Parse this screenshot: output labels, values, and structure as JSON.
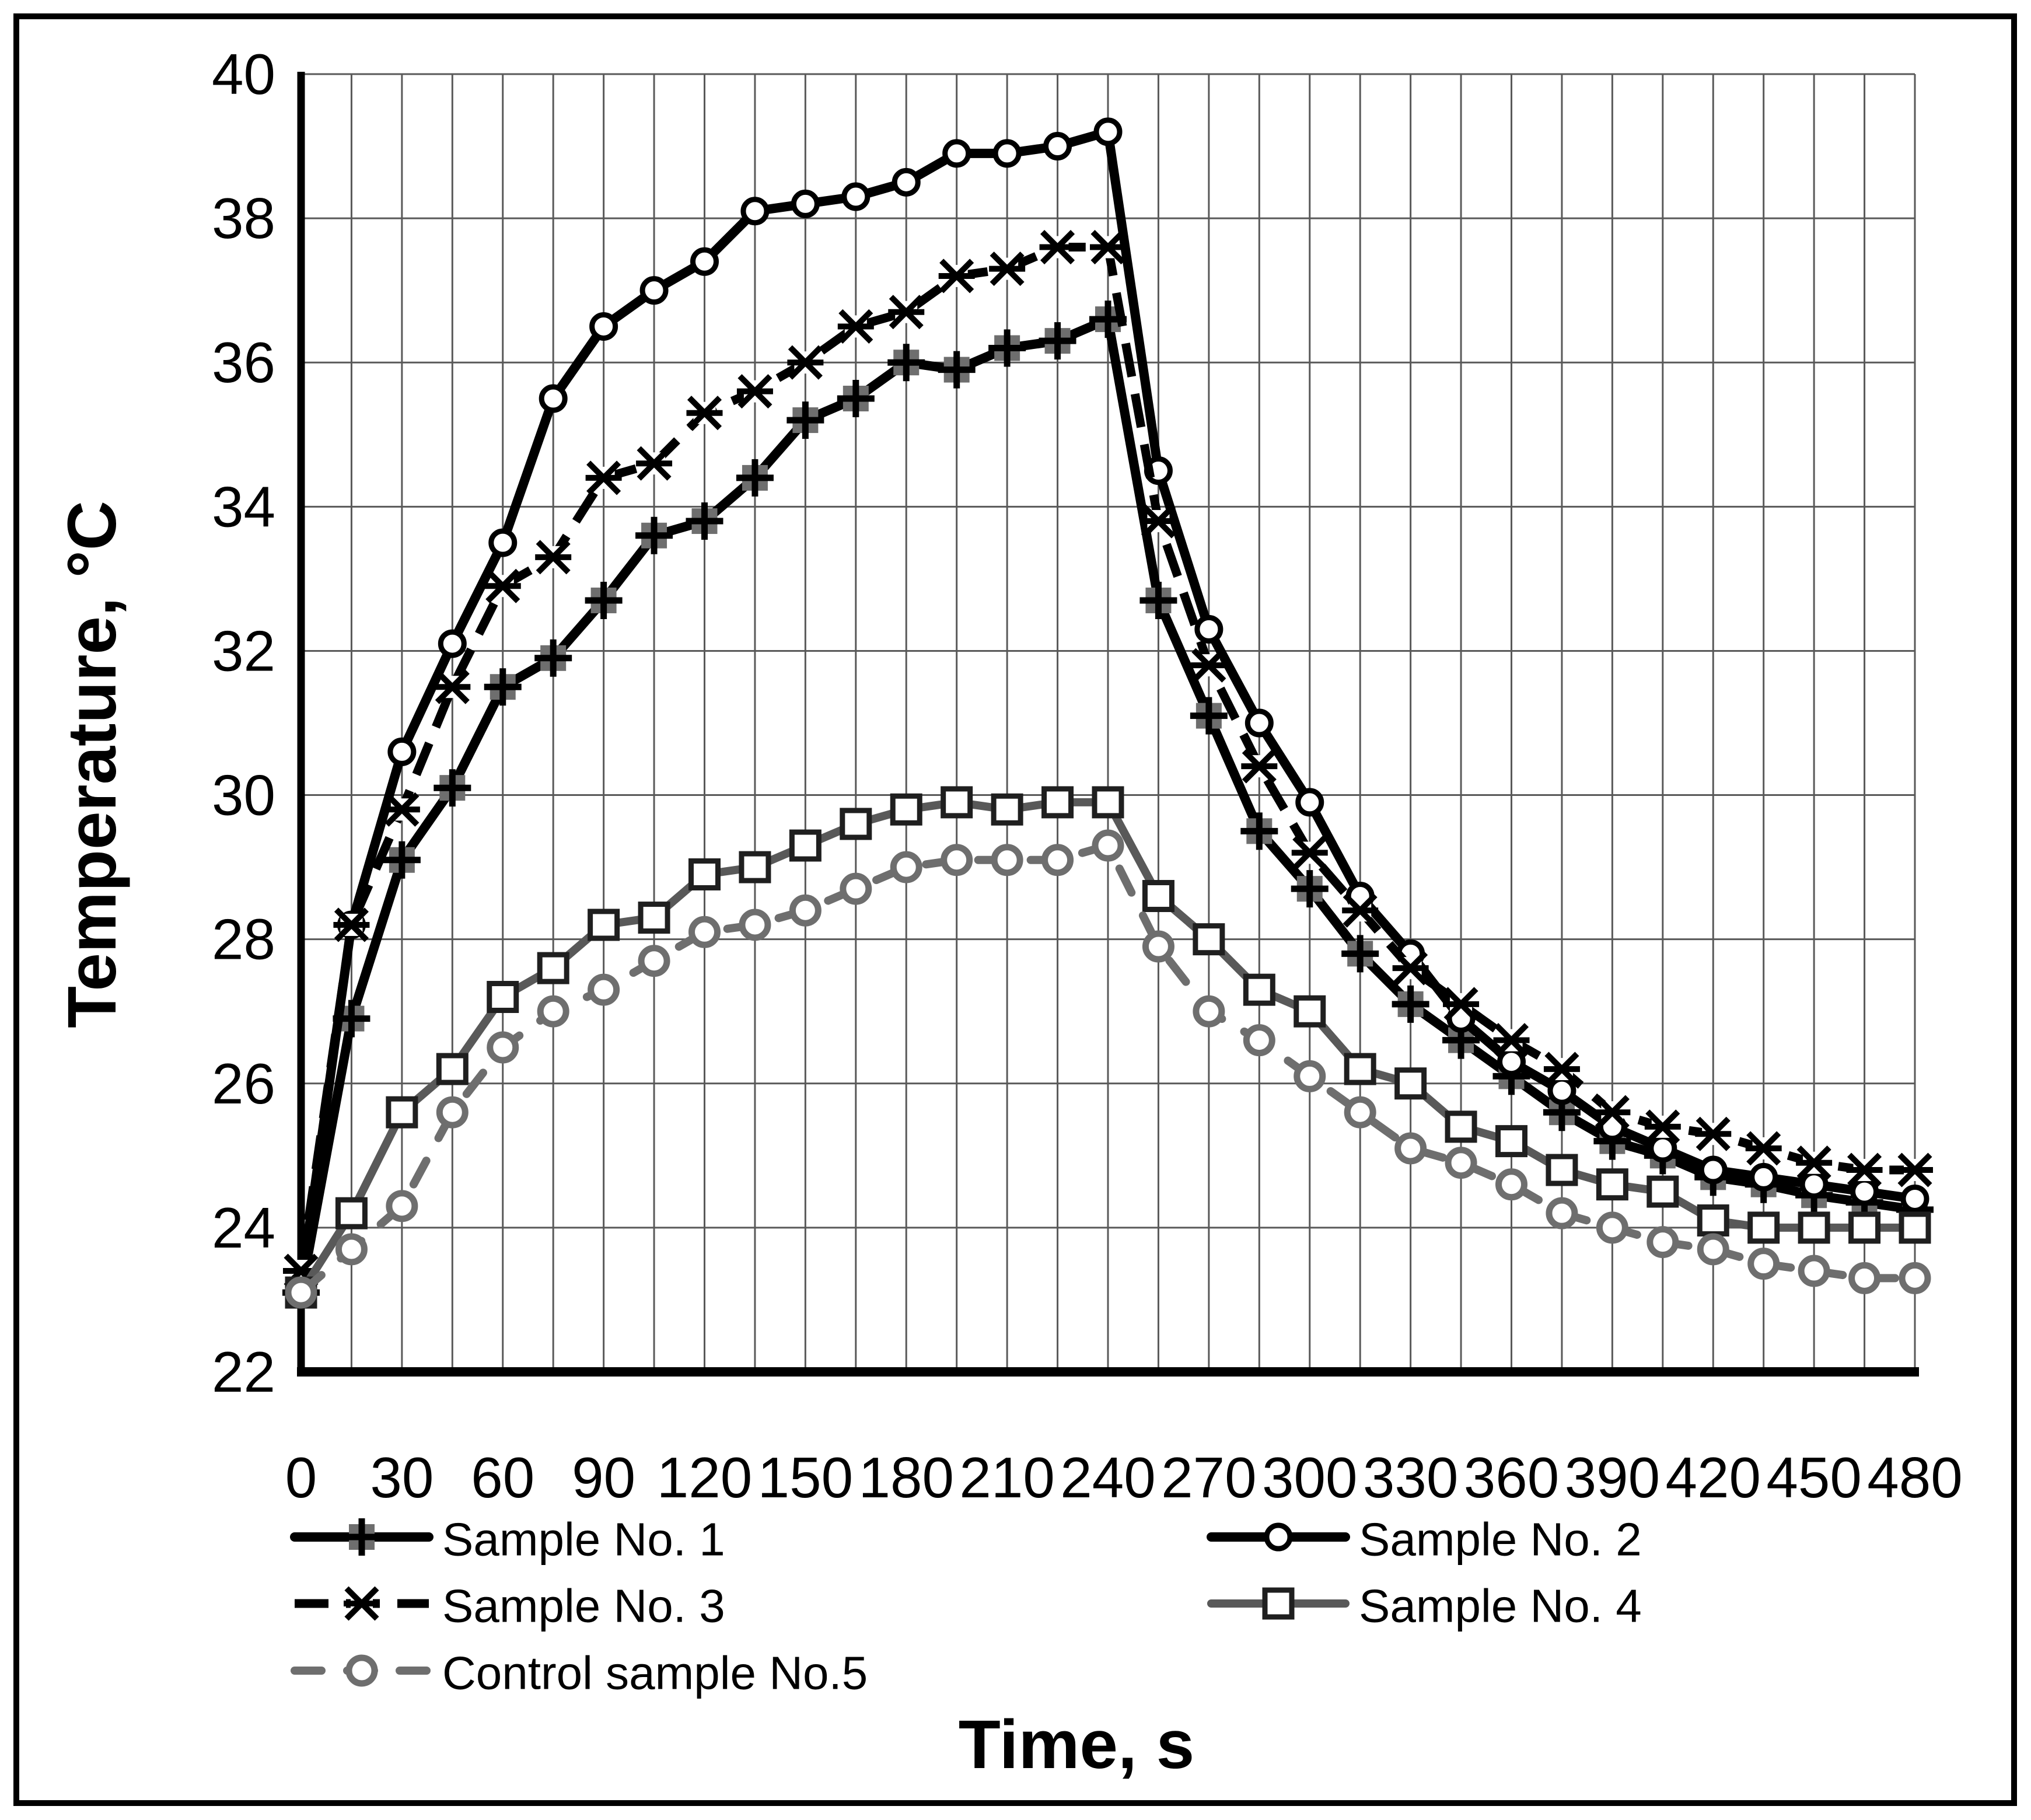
{
  "figure": {
    "background": "#ffffff",
    "border_color": "#000000"
  },
  "chart_data": {
    "type": "line",
    "title": "",
    "xlabel": "Time, s",
    "ylabel": "Temperature, °C",
    "xlim": [
      0,
      480
    ],
    "ylim": [
      22,
      40
    ],
    "x_ticks": [
      0,
      30,
      60,
      90,
      120,
      150,
      180,
      210,
      240,
      270,
      300,
      330,
      360,
      390,
      420,
      450,
      480
    ],
    "y_ticks": [
      22,
      24,
      26,
      28,
      30,
      32,
      34,
      36,
      38,
      40
    ],
    "grid": {
      "x_interval_s": 15,
      "y_interval_deg": 2,
      "color": "#595959"
    },
    "legend_position": "bottom",
    "x": [
      0,
      15,
      30,
      45,
      60,
      75,
      90,
      105,
      120,
      135,
      150,
      165,
      180,
      195,
      210,
      225,
      240,
      255,
      270,
      285,
      300,
      315,
      330,
      345,
      360,
      375,
      390,
      405,
      420,
      435,
      450,
      465,
      480
    ],
    "series": [
      {
        "name": "Sample No. 1",
        "marker": "square-plus",
        "line_style": "solid",
        "line_color": "#000000",
        "marker_fill": "#6e6e6e",
        "marker_stroke": "#000000",
        "values": [
          23.1,
          26.9,
          29.1,
          30.1,
          31.5,
          31.9,
          32.7,
          33.6,
          33.8,
          34.4,
          35.2,
          35.5,
          36.0,
          35.9,
          36.2,
          36.3,
          36.6,
          32.7,
          31.1,
          29.5,
          28.7,
          27.8,
          27.1,
          26.6,
          26.1,
          25.6,
          25.2,
          25.0,
          24.7,
          24.6,
          24.45,
          24.35,
          24.25
        ]
      },
      {
        "name": "Sample No. 2",
        "marker": "open-circle",
        "line_style": "solid",
        "line_color": "#000000",
        "marker_fill": "#ffffff",
        "marker_stroke": "#000000",
        "values": [
          23.2,
          28.2,
          30.6,
          32.1,
          33.5,
          35.5,
          36.5,
          37.0,
          37.4,
          38.1,
          38.2,
          38.3,
          38.5,
          38.9,
          38.9,
          39.0,
          39.2,
          34.5,
          32.3,
          31.0,
          29.9,
          28.6,
          27.8,
          26.9,
          26.3,
          25.9,
          25.4,
          25.1,
          24.8,
          24.7,
          24.6,
          24.5,
          24.4
        ]
      },
      {
        "name": "Sample No. 3",
        "marker": "star",
        "line_style": "dashed",
        "line_color": "#000000",
        "marker_fill": "#ffffff",
        "marker_stroke": "#000000",
        "values": [
          23.4,
          28.2,
          29.8,
          31.5,
          32.9,
          33.3,
          34.4,
          34.6,
          35.3,
          35.6,
          36.0,
          36.5,
          36.7,
          37.2,
          37.3,
          37.6,
          37.6,
          33.8,
          31.8,
          30.4,
          29.2,
          28.4,
          27.6,
          27.1,
          26.6,
          26.2,
          25.6,
          25.4,
          25.3,
          25.1,
          24.9,
          24.8,
          24.8
        ]
      },
      {
        "name": "Sample No. 4",
        "marker": "open-square",
        "line_style": "solid",
        "line_color": "#595959",
        "marker_fill": "#ffffff",
        "marker_stroke": "#1f1f1f",
        "values": [
          23.1,
          24.2,
          25.6,
          26.2,
          27.2,
          27.6,
          28.2,
          28.3,
          28.9,
          29.0,
          29.3,
          29.6,
          29.8,
          29.9,
          29.8,
          29.9,
          29.9,
          28.6,
          28.0,
          27.3,
          27.0,
          26.2,
          26.0,
          25.4,
          25.2,
          24.8,
          24.6,
          24.5,
          24.1,
          24.0,
          24.0,
          24.0,
          24.0
        ]
      },
      {
        "name": "Control sample No.5",
        "marker": "open-circle",
        "line_style": "dashed",
        "line_color": "#6e6e6e",
        "marker_fill": "#ffffff",
        "marker_stroke": "#6e6e6e",
        "values": [
          23.1,
          23.7,
          24.3,
          25.6,
          26.5,
          27.0,
          27.3,
          27.7,
          28.1,
          28.2,
          28.4,
          28.7,
          29.0,
          29.1,
          29.1,
          29.1,
          29.3,
          27.9,
          27.0,
          26.6,
          26.1,
          25.6,
          25.1,
          24.9,
          24.6,
          24.2,
          24.0,
          23.8,
          23.7,
          23.5,
          23.4,
          23.3,
          23.3
        ]
      }
    ],
    "legend": [
      {
        "series": 0,
        "col": 0,
        "row": 0
      },
      {
        "series": 2,
        "col": 0,
        "row": 1
      },
      {
        "series": 4,
        "col": 0,
        "row": 2
      },
      {
        "series": 1,
        "col": 1,
        "row": 0
      },
      {
        "series": 3,
        "col": 1,
        "row": 1
      }
    ]
  }
}
